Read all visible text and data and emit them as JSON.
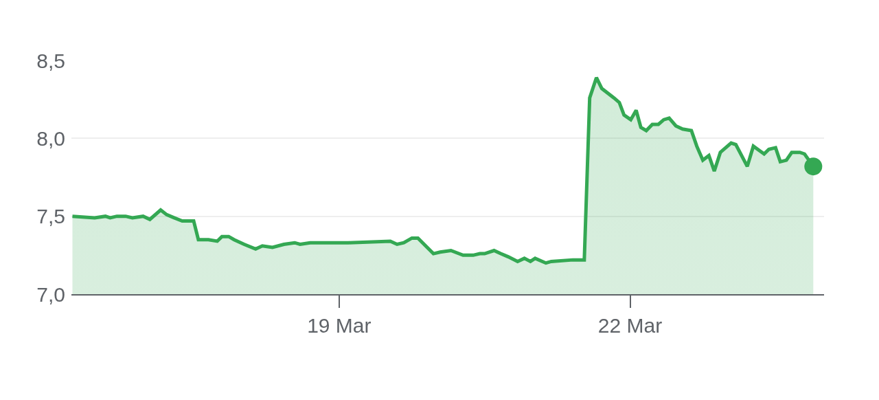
{
  "chart_data": {
    "type": "area",
    "x": [
      "--03-16T06:00",
      "--03-16T11:30",
      "--03-16T14:10",
      "--03-16T15:20",
      "--03-16T17:00",
      "--03-16T19:10",
      "--03-16T20:50",
      "--03-16T23:30",
      "--03-17T01:10",
      "--03-17T03:50",
      "--03-17T05:20",
      "--03-17T07:10",
      "--03-17T09:10",
      "--03-17T10:30",
      "--03-17T12:00",
      "--03-17T13:10",
      "--03-17T15:40",
      "--03-17T17:50",
      "--03-17T19:00",
      "--03-17T20:40",
      "--03-17T22:00",
      "--03-18T00:30",
      "--03-18T03:20",
      "--03-18T05:00",
      "--03-18T07:30",
      "--03-18T10:20",
      "--03-18T13:00",
      "--03-18T14:20",
      "--03-18T16:50",
      "--03-19T02:20",
      "--03-19T12:40",
      "--03-19T14:20",
      "--03-19T16:00",
      "--03-19T18:00",
      "--03-19T19:30",
      "--03-19T23:20",
      "--03-20T01:00",
      "--03-20T03:40",
      "--03-20T06:40",
      "--03-20T09:10",
      "--03-20T10:50",
      "--03-20T12:00",
      "--03-20T14:20",
      "--03-20T16:00",
      "--03-20T17:50",
      "--03-20T20:10",
      "--03-20T21:50",
      "--03-20T23:20",
      "--03-21T00:30",
      "--03-21T03:10",
      "--03-21T04:30",
      "--03-21T09:50",
      "--03-21T12:40",
      "--03-21T14:00",
      "--03-21T15:40",
      "--03-21T17:00",
      "--03-21T20:00",
      "--03-21T21:20",
      "--03-21T22:30",
      "--03-22T00:10",
      "--03-22T01:30",
      "--03-22T02:40",
      "--03-22T04:00",
      "--03-22T05:30",
      "--03-22T07:00",
      "--03-22T08:20",
      "--03-22T09:40",
      "--03-22T11:20",
      "--03-22T13:00",
      "--03-22T15:10",
      "--03-22T16:30",
      "--03-22T18:00",
      "--03-22T19:30",
      "--03-22T20:50",
      "--03-22T22:20",
      "--03-23T01:00",
      "--03-23T02:10",
      "--03-23T05:00",
      "--03-23T06:30",
      "--03-23T09:10",
      "--03-23T10:20",
      "--03-23T12:00",
      "--03-23T13:10",
      "--03-23T14:40",
      "--03-23T16:00",
      "--03-23T18:00",
      "--03-23T19:10",
      "--03-23T21:20"
    ],
    "series": [
      {
        "color": "#34a853",
        "values": [
          7.5,
          7.49,
          7.5,
          7.49,
          7.5,
          7.5,
          7.49,
          7.5,
          7.48,
          7.54,
          7.51,
          7.49,
          7.47,
          7.47,
          7.47,
          7.35,
          7.35,
          7.34,
          7.37,
          7.37,
          7.35,
          7.32,
          7.29,
          7.31,
          7.3,
          7.32,
          7.33,
          7.32,
          7.33,
          7.33,
          7.34,
          7.32,
          7.33,
          7.36,
          7.36,
          7.26,
          7.27,
          7.28,
          7.25,
          7.25,
          7.26,
          7.26,
          7.28,
          7.26,
          7.24,
          7.21,
          7.23,
          7.21,
          7.23,
          7.2,
          7.21,
          7.22,
          7.22,
          8.26,
          8.39,
          8.32,
          8.26,
          8.23,
          8.15,
          8.12,
          8.18,
          8.07,
          8.05,
          8.09,
          8.09,
          8.12,
          8.13,
          8.08,
          8.06,
          8.05,
          7.95,
          7.86,
          7.89,
          7.79,
          7.91,
          7.97,
          7.96,
          7.82,
          7.95,
          7.9,
          7.93,
          7.94,
          7.85,
          7.86,
          7.91,
          7.91,
          7.9,
          7.82
        ]
      }
    ],
    "xlim": [
      "--03-16T05:45",
      "--03-24T00:00"
    ],
    "xticks": [
      {
        "value": "--03-19",
        "label": "19 Mar"
      },
      {
        "value": "--03-22",
        "label": "22 Mar"
      }
    ],
    "ylim": [
      7.0,
      8.5
    ],
    "yticks": [
      {
        "value": 7.0,
        "label": "7,0"
      },
      {
        "value": 7.5,
        "label": "7,5"
      },
      {
        "value": 8.0,
        "label": "8,0"
      },
      {
        "value": 8.5,
        "label": "8,5"
      }
    ],
    "grid": "y",
    "marker": "none",
    "line_style": "solid"
  }
}
